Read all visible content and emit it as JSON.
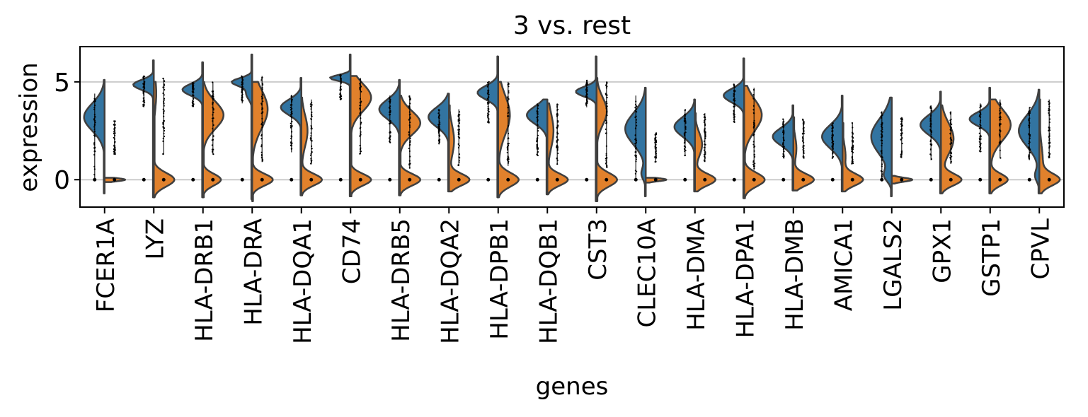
{
  "chart_data": {
    "type": "violin",
    "title": "3 vs. rest",
    "xlabel": "genes",
    "ylabel": "expression",
    "ylim": [
      -1.4,
      6.8
    ],
    "yticks": [
      0,
      5
    ],
    "grid": "horizontal",
    "split": true,
    "groups": [
      {
        "name": "3",
        "color": "#3274a1"
      },
      {
        "name": "rest",
        "color": "#e1812c"
      }
    ],
    "edge_color": "#3f3f3f",
    "categories": [
      "FCER1A",
      "LYZ",
      "HLA-DRB1",
      "HLA-DRA",
      "HLA-DQA1",
      "CD74",
      "HLA-DRB5",
      "HLA-DQA2",
      "HLA-DPB1",
      "HLA-DQB1",
      "CST3",
      "CLEC10A",
      "HLA-DMA",
      "HLA-DPA1",
      "HLA-DMB",
      "AMICA1",
      "LGALS2",
      "GPX1",
      "GSTP1",
      "CPVL"
    ],
    "violins": [
      {
        "g3": {
          "modes": [
            [
              3.2,
              0.7,
              1
            ]
          ],
          "range": [
            -0.7,
            5.1
          ],
          "points": [
            0,
            4.4
          ]
        },
        "rest": {
          "modes": [
            [
              0,
              0.08,
              1
            ]
          ],
          "range": [
            -0.12,
            0.1
          ],
          "points": [
            1.3,
            3.0
          ]
        }
      },
      {
        "g3": {
          "modes": [
            [
              4.85,
              0.25,
              1
            ],
            [
              2.5,
              1.5,
              0.04
            ]
          ],
          "range": [
            -0.9,
            6.1
          ],
          "points": [
            3.7,
            5.3
          ]
        },
        "rest": {
          "modes": [
            [
              0,
              0.35,
              1
            ],
            [
              4.4,
              0.8,
              0.12
            ]
          ],
          "range": [
            -0.9,
            5.0
          ],
          "points": [
            1.3,
            5.2
          ]
        }
      },
      {
        "g3": {
          "modes": [
            [
              4.6,
              0.3,
              1
            ]
          ],
          "range": [
            -0.9,
            6.0
          ],
          "points": [
            3.7,
            5.0
          ]
        },
        "rest": {
          "modes": [
            [
              3.3,
              0.7,
              0.8
            ],
            [
              0,
              0.3,
              0.7
            ]
          ],
          "range": [
            -0.9,
            5.0
          ],
          "points": [
            1.3,
            5.0
          ]
        }
      },
      {
        "g3": {
          "modes": [
            [
              5.0,
              0.2,
              1
            ],
            [
              4.4,
              0.3,
              0.3
            ]
          ],
          "range": [
            -1.0,
            6.4
          ],
          "points": [
            3.9,
            5.3
          ]
        },
        "rest": {
          "modes": [
            [
              3.6,
              1.0,
              0.6
            ],
            [
              0,
              0.3,
              0.8
            ]
          ],
          "range": [
            -1.1,
            5.0
          ],
          "points": [
            0.9,
            5.3
          ]
        }
      },
      {
        "g3": {
          "modes": [
            [
              3.7,
              0.4,
              1
            ]
          ],
          "range": [
            -0.8,
            5.2
          ],
          "points": [
            1.4,
            4.3
          ]
        },
        "rest": {
          "modes": [
            [
              2.5,
              0.8,
              0.3
            ],
            [
              0,
              0.3,
              1
            ]
          ],
          "range": [
            -0.8,
            4.2
          ],
          "points": [
            0.8,
            4.1
          ]
        }
      },
      {
        "g3": {
          "modes": [
            [
              5.2,
              0.15,
              1
            ]
          ],
          "range": [
            -0.85,
            6.4
          ],
          "points": [
            4.1,
            5.4
          ]
        },
        "rest": {
          "modes": [
            [
              4.2,
              0.7,
              0.5
            ],
            [
              0,
              0.3,
              0.5
            ]
          ],
          "range": [
            -0.85,
            5.3
          ],
          "points": [
            1.3,
            5.2
          ]
        }
      },
      {
        "g3": {
          "modes": [
            [
              3.6,
              0.5,
              1
            ]
          ],
          "range": [
            -0.8,
            5.1
          ],
          "points": [
            1.9,
            4.3
          ]
        },
        "rest": {
          "modes": [
            [
              2.9,
              0.6,
              0.7
            ],
            [
              0,
              0.3,
              0.7
            ]
          ],
          "range": [
            -0.8,
            4.3
          ],
          "points": [
            0.6,
            4.3
          ]
        }
      },
      {
        "g3": {
          "modes": [
            [
              3.2,
              0.5,
              1
            ]
          ],
          "range": [
            -0.6,
            4.4
          ],
          "points": [
            1.8,
            3.6
          ]
        },
        "rest": {
          "modes": [
            [
              2.0,
              0.8,
              0.25
            ],
            [
              0,
              0.3,
              1
            ]
          ],
          "range": [
            -0.6,
            3.8
          ],
          "points": [
            0.7,
            3.6
          ]
        }
      },
      {
        "g3": {
          "modes": [
            [
              4.45,
              0.35,
              1
            ]
          ],
          "range": [
            -0.9,
            6.3
          ],
          "points": [
            2.9,
            5.0
          ]
        },
        "rest": {
          "modes": [
            [
              3.3,
              1.0,
              0.4
            ],
            [
              0,
              0.35,
              0.7
            ]
          ],
          "range": [
            -0.9,
            5.0
          ],
          "points": [
            0.7,
            5.0
          ]
        }
      },
      {
        "g3": {
          "modes": [
            [
              3.3,
              0.45,
              1
            ]
          ],
          "range": [
            -0.75,
            4.1
          ],
          "points": [
            1.2,
            3.9
          ]
        },
        "rest": {
          "modes": [
            [
              2.5,
              0.9,
              0.3
            ],
            [
              0,
              0.3,
              1
            ]
          ],
          "range": [
            -0.75,
            3.9
          ],
          "points": [
            0.8,
            3.9
          ]
        }
      },
      {
        "g3": {
          "modes": [
            [
              4.5,
              0.25,
              1
            ]
          ],
          "range": [
            -1.1,
            6.3
          ],
          "points": [
            3.7,
            5.1
          ]
        },
        "rest": {
          "modes": [
            [
              3.5,
              0.7,
              0.4
            ],
            [
              0,
              0.35,
              0.8
            ]
          ],
          "range": [
            -1.1,
            5.2
          ],
          "points": [
            0.6,
            5.0
          ]
        }
      },
      {
        "g3": {
          "modes": [
            [
              2.6,
              0.8,
              1
            ],
            [
              0.3,
              0.3,
              0.2
            ]
          ],
          "range": [
            -0.85,
            4.7
          ],
          "points": [
            0,
            4.3
          ]
        },
        "rest": {
          "modes": [
            [
              0,
              0.08,
              1
            ]
          ],
          "range": [
            -0.15,
            0.1
          ],
          "points": [
            0.9,
            2.4
          ]
        }
      },
      {
        "g3": {
          "modes": [
            [
              2.7,
              0.5,
              1
            ]
          ],
          "range": [
            -0.6,
            4.1
          ],
          "points": [
            1.2,
            3.6
          ]
        },
        "rest": {
          "modes": [
            [
              1.8,
              0.6,
              0.35
            ],
            [
              0,
              0.3,
              1
            ]
          ],
          "range": [
            -0.6,
            3.4
          ],
          "points": [
            0.9,
            3.4
          ]
        }
      },
      {
        "g3": {
          "modes": [
            [
              4.3,
              0.35,
              1
            ]
          ],
          "range": [
            -0.95,
            6.2
          ],
          "points": [
            2.9,
            4.9
          ]
        },
        "rest": {
          "modes": [
            [
              3.3,
              0.8,
              0.6
            ],
            [
              0,
              0.35,
              0.7
            ]
          ],
          "range": [
            -0.95,
            4.8
          ],
          "points": [
            0.5,
            4.7
          ]
        }
      },
      {
        "g3": {
          "modes": [
            [
              2.2,
              0.45,
              1
            ]
          ],
          "range": [
            -0.55,
            3.8
          ],
          "points": [
            1.1,
            3.1
          ]
        },
        "rest": {
          "modes": [
            [
              1.6,
              0.6,
              0.15
            ],
            [
              0,
              0.3,
              1
            ]
          ],
          "range": [
            -0.55,
            3.2
          ],
          "points": [
            1.1,
            3.1
          ]
        }
      },
      {
        "g3": {
          "modes": [
            [
              2.2,
              0.6,
              1
            ]
          ],
          "range": [
            -0.6,
            4.3
          ],
          "points": [
            1.1,
            2.9
          ]
        },
        "rest": {
          "modes": [
            [
              1.2,
              0.6,
              0.15
            ],
            [
              0,
              0.3,
              1
            ]
          ],
          "range": [
            -0.6,
            2.9
          ],
          "points": [
            0.8,
            2.9
          ]
        }
      },
      {
        "g3": {
          "modes": [
            [
              2.2,
              0.9,
              1
            ],
            [
              0.2,
              0.3,
              0.3
            ]
          ],
          "range": [
            -0.85,
            4.2
          ],
          "points": [
            0,
            3.5
          ]
        },
        "rest": {
          "modes": [
            [
              0,
              0.1,
              1
            ]
          ],
          "range": [
            -0.2,
            0.2
          ],
          "points": [
            1.1,
            3.2
          ]
        }
      },
      {
        "g3": {
          "modes": [
            [
              2.8,
              0.5,
              1
            ]
          ],
          "range": [
            -0.7,
            4.5
          ],
          "points": [
            1.0,
            3.8
          ]
        },
        "rest": {
          "modes": [
            [
              2.1,
              0.8,
              0.5
            ],
            [
              0,
              0.3,
              0.8
            ]
          ],
          "range": [
            -0.7,
            3.8
          ],
          "points": [
            0.8,
            3.5
          ]
        }
      },
      {
        "g3": {
          "modes": [
            [
              3.1,
              0.35,
              1
            ]
          ],
          "range": [
            -0.7,
            4.7
          ],
          "points": [
            1.4,
            3.9
          ]
        },
        "rest": {
          "modes": [
            [
              2.8,
              0.8,
              0.7
            ],
            [
              0,
              0.3,
              0.6
            ]
          ],
          "range": [
            -0.7,
            4.1
          ],
          "points": [
            1.1,
            4.1
          ]
        }
      },
      {
        "g3": {
          "modes": [
            [
              2.5,
              0.8,
              1
            ],
            [
              0.2,
              0.3,
              0.2
            ]
          ],
          "range": [
            -0.7,
            4.6
          ],
          "points": [
            1.0,
            3.7
          ]
        },
        "rest": {
          "modes": [
            [
              0.8,
              1.0,
              0.2
            ],
            [
              0,
              0.3,
              1
            ]
          ],
          "range": [
            -0.7,
            4.1
          ],
          "points": [
            1.1,
            4.1
          ]
        }
      }
    ]
  }
}
